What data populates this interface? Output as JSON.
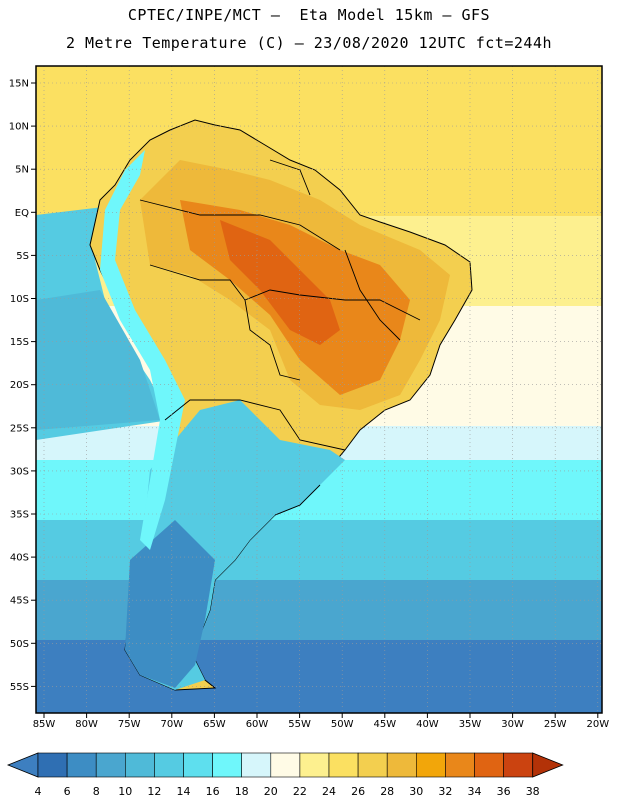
{
  "title_line1": "CPTEC/INPE/MCT –  Eta Model 15km – GFS",
  "title_line2": "2 Metre Temperature (C) – 23/08/2020 12UTC fct=244h",
  "lat_labels": [
    "15N",
    "10N",
    "5N",
    "EQ",
    "5S",
    "10S",
    "15S",
    "20S",
    "25S",
    "30S",
    "35S",
    "40S",
    "45S",
    "50S",
    "55S"
  ],
  "lon_labels": [
    "85W",
    "80W",
    "75W",
    "70W",
    "65W",
    "60W",
    "55W",
    "50W",
    "45W",
    "40W",
    "35W",
    "30W",
    "25W",
    "20W"
  ],
  "colorbar": {
    "labels": [
      "4",
      "6",
      "8",
      "10",
      "12",
      "14",
      "16",
      "18",
      "20",
      "22",
      "24",
      "26",
      "28",
      "30",
      "32",
      "34",
      "36",
      "38"
    ],
    "colors": [
      "#3d7fc0",
      "#2f6fb3",
      "#3d8dc4",
      "#4aa6cf",
      "#4fbad8",
      "#55cbe2",
      "#5edfee",
      "#6ff7fb",
      "#d6f6fb",
      "#fffbe6",
      "#fdf08f",
      "#fbe061",
      "#f3cf4f",
      "#eeb93a",
      "#f2a60a",
      "#e9871a",
      "#e06412",
      "#cb4310",
      "#b33208"
    ]
  }
}
